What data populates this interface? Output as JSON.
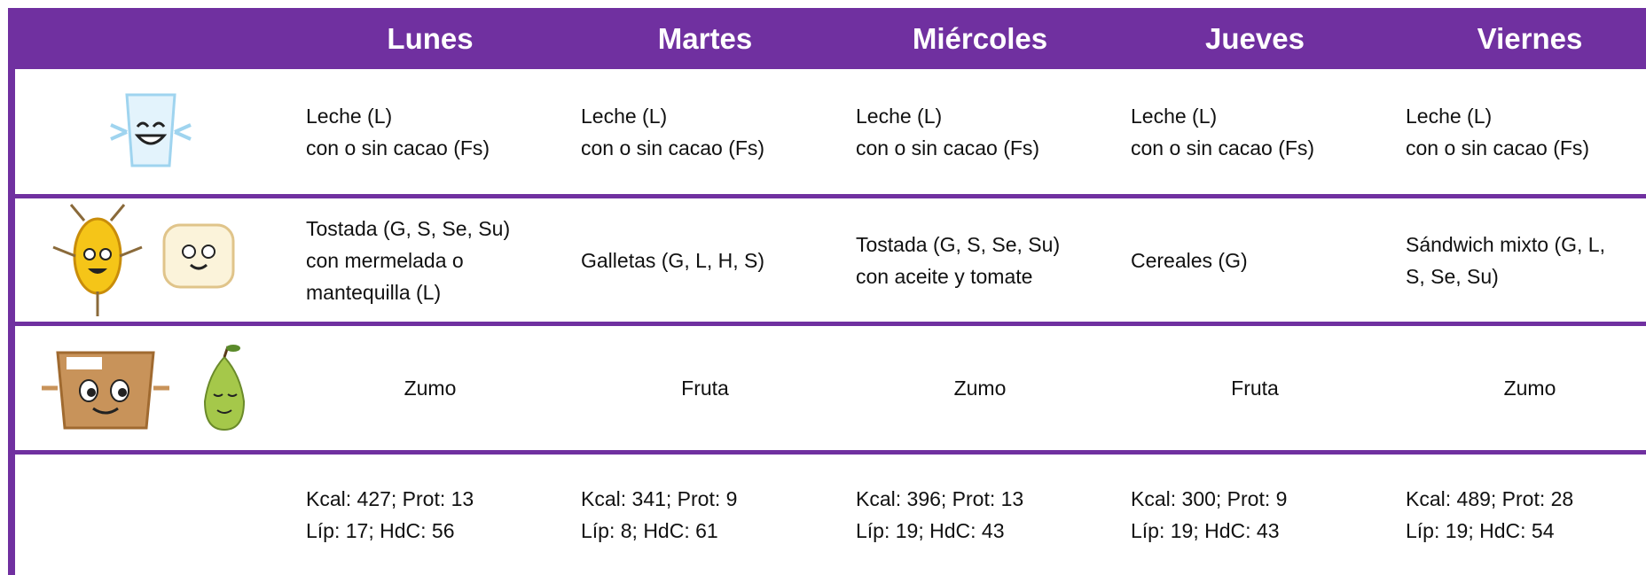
{
  "header": {
    "days": [
      "Lunes",
      "Martes",
      "Miércoles",
      "Jueves",
      "Viernes"
    ]
  },
  "rows": [
    {
      "align": "left",
      "cells": [
        [
          "Leche (L)",
          "con o sin cacao (Fs)"
        ],
        [
          "Leche (L)",
          "con o sin cacao (Fs)"
        ],
        [
          "Leche (L)",
          "con o sin cacao (Fs)"
        ],
        [
          "Leche (L)",
          "con o sin cacao (Fs)"
        ],
        [
          "Leche (L)",
          "con o sin cacao (Fs)"
        ]
      ]
    },
    {
      "align": "left",
      "cells": [
        [
          "Tostada (G, S, Se, Su)",
          "con mermelada o",
          "mantequilla (L)"
        ],
        [
          "Galletas (G, L, H, S)"
        ],
        [
          "Tostada (G, S, Se, Su)",
          "con aceite y tomate"
        ],
        [
          "Cereales (G)"
        ],
        [
          "Sándwich mixto (G, L,",
          "S, Se, Su)"
        ]
      ]
    },
    {
      "align": "center",
      "cells": [
        [
          "Zumo"
        ],
        [
          "Fruta"
        ],
        [
          "Zumo"
        ],
        [
          "Fruta"
        ],
        [
          "Zumo"
        ]
      ]
    },
    {
      "align": "left",
      "cells": [
        [
          "Kcal: 427; Prot: 13",
          "Líp: 17; HdC: 56"
        ],
        [
          "Kcal: 341; Prot: 9",
          "Líp: 8; HdC: 61"
        ],
        [
          "Kcal: 396; Prot: 13",
          "Líp: 19; HdC: 43"
        ],
        [
          "Kcal: 300; Prot: 9",
          "Líp: 19; HdC: 43"
        ],
        [
          "Kcal: 489; Prot: 28",
          "Líp: 19; HdC: 54"
        ]
      ]
    }
  ]
}
